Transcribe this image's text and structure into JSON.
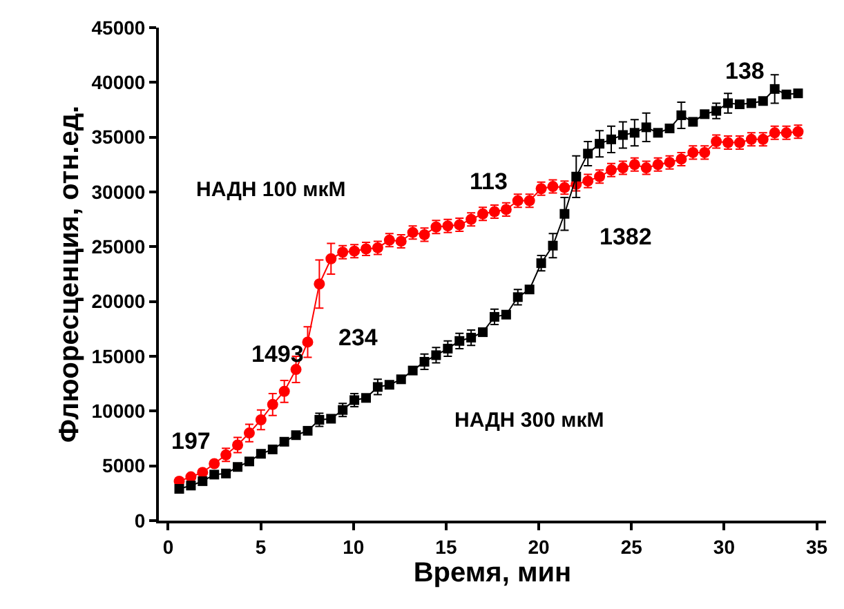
{
  "chart_data": {
    "type": "line",
    "xlabel": "Время, мин",
    "ylabel": "Флюоресценция, отн.ед.",
    "xlim": [
      -0.5,
      35.5
    ],
    "xticks": [
      0,
      5,
      10,
      15,
      20,
      25,
      30,
      35
    ],
    "ylim": [
      0,
      45000
    ],
    "yticks": [
      0,
      5000,
      10000,
      15000,
      20000,
      25000,
      30000,
      35000,
      40000,
      45000
    ],
    "legend": false,
    "series": [
      {
        "name": "НАДН 100 мкМ",
        "color": "#ff0000",
        "marker": "circle",
        "values": [
          3600,
          4000,
          4400,
          5200,
          6000,
          6900,
          8000,
          9200,
          10600,
          11800,
          13800,
          16300,
          21600,
          23900,
          24500,
          24600,
          24800,
          24900,
          25600,
          25500,
          26300,
          26100,
          26800,
          26900,
          27000,
          27500,
          28000,
          28200,
          28400,
          29200,
          29200,
          30300,
          30500,
          30400,
          30700,
          31000,
          31400,
          32000,
          32200,
          32500,
          32200,
          32500,
          32700,
          33000,
          33600,
          33600,
          34600,
          34500,
          34500,
          34800,
          34800,
          35400,
          35400,
          35500
        ],
        "errors": [
          null,
          null,
          null,
          null,
          600,
          700,
          800,
          900,
          1000,
          1000,
          1200,
          1400,
          2200,
          1400,
          600,
          600,
          600,
          600,
          600,
          600,
          600,
          600,
          600,
          600,
          600,
          600,
          600,
          600,
          600,
          600,
          600,
          600,
          600,
          600,
          600,
          600,
          600,
          600,
          600,
          600,
          600,
          600,
          600,
          600,
          600,
          600,
          600,
          600,
          600,
          600,
          600,
          600,
          600,
          600
        ]
      },
      {
        "name": "НАДН 300 мкМ",
        "color": "#000000",
        "marker": "square",
        "values": [
          2900,
          3200,
          3600,
          4200,
          4300,
          4900,
          5400,
          6100,
          6500,
          7200,
          7800,
          8200,
          9200,
          9300,
          10100,
          11000,
          11200,
          12200,
          12400,
          12900,
          13700,
          14500,
          15100,
          15700,
          16400,
          16700,
          17200,
          18600,
          18800,
          20400,
          21100,
          23500,
          25100,
          28000,
          31400,
          33500,
          34400,
          34800,
          35200,
          35400,
          35900,
          35400,
          35800,
          37000,
          36400,
          37100,
          37400,
          38100,
          38000,
          38100,
          38300,
          39400,
          38900,
          39000
        ],
        "errors": [
          null,
          null,
          null,
          null,
          null,
          null,
          null,
          null,
          null,
          null,
          null,
          null,
          600,
          null,
          600,
          600,
          null,
          700,
          null,
          null,
          null,
          700,
          700,
          700,
          700,
          700,
          null,
          700,
          null,
          700,
          null,
          700,
          1100,
          1500,
          1900,
          1100,
          1200,
          1200,
          1200,
          1200,
          1300,
          null,
          null,
          1200,
          null,
          null,
          700,
          900,
          null,
          null,
          null,
          1300,
          null,
          null
        ]
      }
    ],
    "x": [
      0.6,
      1.23,
      1.86,
      2.49,
      3.12,
      3.75,
      4.38,
      5.01,
      5.64,
      6.27,
      6.9,
      7.53,
      8.16,
      8.79,
      9.42,
      10.05,
      10.68,
      11.31,
      11.94,
      12.57,
      13.2,
      13.83,
      14.46,
      15.09,
      15.72,
      16.35,
      16.98,
      17.61,
      18.24,
      18.87,
      19.5,
      20.13,
      20.76,
      21.39,
      22.02,
      22.65,
      23.28,
      23.91,
      24.54,
      25.17,
      25.8,
      26.43,
      27.06,
      27.69,
      28.32,
      28.95,
      29.58,
      30.21,
      30.84,
      31.47,
      32.1,
      32.73,
      33.36,
      33.99
    ],
    "annotations": [
      "197",
      "1493",
      "234",
      "113",
      "1382",
      "138"
    ]
  }
}
